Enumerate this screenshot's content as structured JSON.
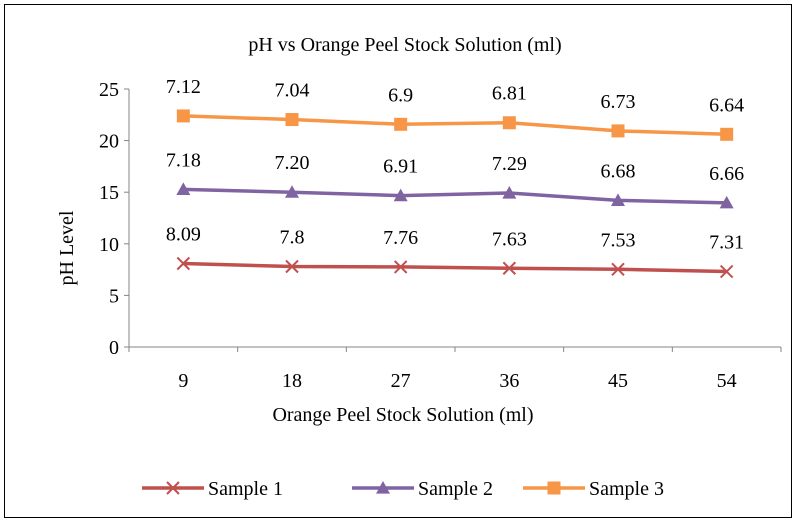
{
  "chart_data": {
    "type": "line",
    "title": "pH vs Orange Peel Stock Solution (ml)",
    "xlabel": "Orange Peel Stock Solution (ml)",
    "ylabel": "pH Level",
    "categories": [
      "9",
      "18",
      "27",
      "36",
      "45",
      "54"
    ],
    "ylim": [
      0,
      25
    ],
    "yticks": [
      "0",
      "5",
      "10",
      "15",
      "20",
      "25"
    ],
    "grid": false,
    "legend_position": "bottom",
    "series": [
      {
        "name": "Sample 1",
        "color": "#C0504D",
        "marker": "x",
        "values": [
          8.09,
          7.8,
          7.76,
          7.63,
          7.53,
          7.31
        ],
        "labels": [
          "8.09",
          "7.8",
          "7.76",
          "7.63",
          "7.53",
          "7.31"
        ]
      },
      {
        "name": "Sample 2",
        "color": "#8064A2",
        "marker": "triangle",
        "values": [
          15.27,
          15.0,
          14.67,
          14.92,
          14.21,
          13.97
        ],
        "labels": [
          "7.18",
          "7.20",
          "6.91",
          "7.29",
          "6.68",
          "6.66"
        ]
      },
      {
        "name": "Sample 3",
        "color": "#F79646",
        "marker": "square",
        "values": [
          22.39,
          22.04,
          21.58,
          21.73,
          20.94,
          20.61
        ],
        "labels": [
          "7.12",
          "7.04",
          "6.9",
          "6.81",
          "6.73",
          "6.64"
        ]
      }
    ]
  }
}
